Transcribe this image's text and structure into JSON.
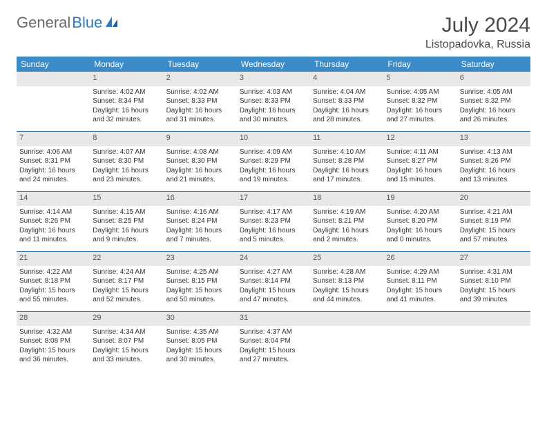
{
  "brand": {
    "part1": "General",
    "part2": "Blue"
  },
  "title": "July 2024",
  "location": "Listopadovka, Russia",
  "colors": {
    "header_bg": "#3b8bc9",
    "header_text": "#ffffff",
    "daynum_bg": "#e8e8e8",
    "sep": "#2b6fa8",
    "brand_gray": "#6a6a6a",
    "brand_blue": "#2b7bbf"
  },
  "day_headers": [
    "Sunday",
    "Monday",
    "Tuesday",
    "Wednesday",
    "Thursday",
    "Friday",
    "Saturday"
  ],
  "weeks": [
    [
      null,
      {
        "n": "1",
        "sr": "Sunrise: 4:02 AM",
        "ss": "Sunset: 8:34 PM",
        "dl": "Daylight: 16 hours and 32 minutes."
      },
      {
        "n": "2",
        "sr": "Sunrise: 4:02 AM",
        "ss": "Sunset: 8:33 PM",
        "dl": "Daylight: 16 hours and 31 minutes."
      },
      {
        "n": "3",
        "sr": "Sunrise: 4:03 AM",
        "ss": "Sunset: 8:33 PM",
        "dl": "Daylight: 16 hours and 30 minutes."
      },
      {
        "n": "4",
        "sr": "Sunrise: 4:04 AM",
        "ss": "Sunset: 8:33 PM",
        "dl": "Daylight: 16 hours and 28 minutes."
      },
      {
        "n": "5",
        "sr": "Sunrise: 4:05 AM",
        "ss": "Sunset: 8:32 PM",
        "dl": "Daylight: 16 hours and 27 minutes."
      },
      {
        "n": "6",
        "sr": "Sunrise: 4:05 AM",
        "ss": "Sunset: 8:32 PM",
        "dl": "Daylight: 16 hours and 26 minutes."
      }
    ],
    [
      {
        "n": "7",
        "sr": "Sunrise: 4:06 AM",
        "ss": "Sunset: 8:31 PM",
        "dl": "Daylight: 16 hours and 24 minutes."
      },
      {
        "n": "8",
        "sr": "Sunrise: 4:07 AM",
        "ss": "Sunset: 8:30 PM",
        "dl": "Daylight: 16 hours and 23 minutes."
      },
      {
        "n": "9",
        "sr": "Sunrise: 4:08 AM",
        "ss": "Sunset: 8:30 PM",
        "dl": "Daylight: 16 hours and 21 minutes."
      },
      {
        "n": "10",
        "sr": "Sunrise: 4:09 AM",
        "ss": "Sunset: 8:29 PM",
        "dl": "Daylight: 16 hours and 19 minutes."
      },
      {
        "n": "11",
        "sr": "Sunrise: 4:10 AM",
        "ss": "Sunset: 8:28 PM",
        "dl": "Daylight: 16 hours and 17 minutes."
      },
      {
        "n": "12",
        "sr": "Sunrise: 4:11 AM",
        "ss": "Sunset: 8:27 PM",
        "dl": "Daylight: 16 hours and 15 minutes."
      },
      {
        "n": "13",
        "sr": "Sunrise: 4:13 AM",
        "ss": "Sunset: 8:26 PM",
        "dl": "Daylight: 16 hours and 13 minutes."
      }
    ],
    [
      {
        "n": "14",
        "sr": "Sunrise: 4:14 AM",
        "ss": "Sunset: 8:26 PM",
        "dl": "Daylight: 16 hours and 11 minutes."
      },
      {
        "n": "15",
        "sr": "Sunrise: 4:15 AM",
        "ss": "Sunset: 8:25 PM",
        "dl": "Daylight: 16 hours and 9 minutes."
      },
      {
        "n": "16",
        "sr": "Sunrise: 4:16 AM",
        "ss": "Sunset: 8:24 PM",
        "dl": "Daylight: 16 hours and 7 minutes."
      },
      {
        "n": "17",
        "sr": "Sunrise: 4:17 AM",
        "ss": "Sunset: 8:23 PM",
        "dl": "Daylight: 16 hours and 5 minutes."
      },
      {
        "n": "18",
        "sr": "Sunrise: 4:19 AM",
        "ss": "Sunset: 8:21 PM",
        "dl": "Daylight: 16 hours and 2 minutes."
      },
      {
        "n": "19",
        "sr": "Sunrise: 4:20 AM",
        "ss": "Sunset: 8:20 PM",
        "dl": "Daylight: 16 hours and 0 minutes."
      },
      {
        "n": "20",
        "sr": "Sunrise: 4:21 AM",
        "ss": "Sunset: 8:19 PM",
        "dl": "Daylight: 15 hours and 57 minutes."
      }
    ],
    [
      {
        "n": "21",
        "sr": "Sunrise: 4:22 AM",
        "ss": "Sunset: 8:18 PM",
        "dl": "Daylight: 15 hours and 55 minutes."
      },
      {
        "n": "22",
        "sr": "Sunrise: 4:24 AM",
        "ss": "Sunset: 8:17 PM",
        "dl": "Daylight: 15 hours and 52 minutes."
      },
      {
        "n": "23",
        "sr": "Sunrise: 4:25 AM",
        "ss": "Sunset: 8:15 PM",
        "dl": "Daylight: 15 hours and 50 minutes."
      },
      {
        "n": "24",
        "sr": "Sunrise: 4:27 AM",
        "ss": "Sunset: 8:14 PM",
        "dl": "Daylight: 15 hours and 47 minutes."
      },
      {
        "n": "25",
        "sr": "Sunrise: 4:28 AM",
        "ss": "Sunset: 8:13 PM",
        "dl": "Daylight: 15 hours and 44 minutes."
      },
      {
        "n": "26",
        "sr": "Sunrise: 4:29 AM",
        "ss": "Sunset: 8:11 PM",
        "dl": "Daylight: 15 hours and 41 minutes."
      },
      {
        "n": "27",
        "sr": "Sunrise: 4:31 AM",
        "ss": "Sunset: 8:10 PM",
        "dl": "Daylight: 15 hours and 39 minutes."
      }
    ],
    [
      {
        "n": "28",
        "sr": "Sunrise: 4:32 AM",
        "ss": "Sunset: 8:08 PM",
        "dl": "Daylight: 15 hours and 36 minutes."
      },
      {
        "n": "29",
        "sr": "Sunrise: 4:34 AM",
        "ss": "Sunset: 8:07 PM",
        "dl": "Daylight: 15 hours and 33 minutes."
      },
      {
        "n": "30",
        "sr": "Sunrise: 4:35 AM",
        "ss": "Sunset: 8:05 PM",
        "dl": "Daylight: 15 hours and 30 minutes."
      },
      {
        "n": "31",
        "sr": "Sunrise: 4:37 AM",
        "ss": "Sunset: 8:04 PM",
        "dl": "Daylight: 15 hours and 27 minutes."
      },
      null,
      null,
      null
    ]
  ]
}
